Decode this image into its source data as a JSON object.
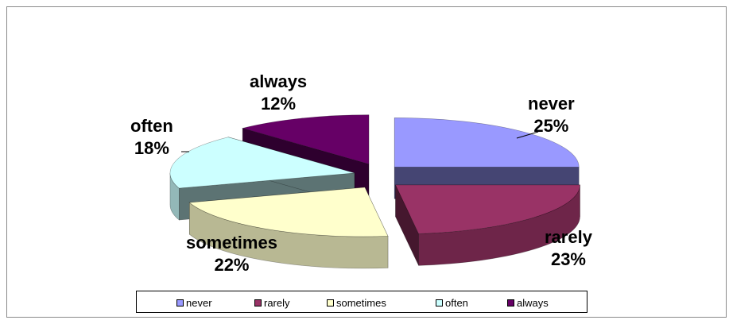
{
  "chart_data": {
    "type": "pie",
    "style": "3d-exploded",
    "title": "",
    "slices": [
      {
        "label": "never",
        "value": 25,
        "value_label": "25%",
        "color": "#9999FF"
      },
      {
        "label": "rarely",
        "value": 23,
        "value_label": "23%",
        "color": "#993366"
      },
      {
        "label": "sometimes",
        "value": 22,
        "value_label": "22%",
        "color": "#FFFFCC"
      },
      {
        "label": "often",
        "value": 18,
        "value_label": "18%",
        "color": "#CCFFFF"
      },
      {
        "label": "always",
        "value": 12,
        "value_label": "12%",
        "color": "#660066"
      }
    ],
    "legend": {
      "position": "bottom",
      "entries": [
        "never",
        "rarely",
        "sometimes",
        "often",
        "always"
      ]
    }
  }
}
